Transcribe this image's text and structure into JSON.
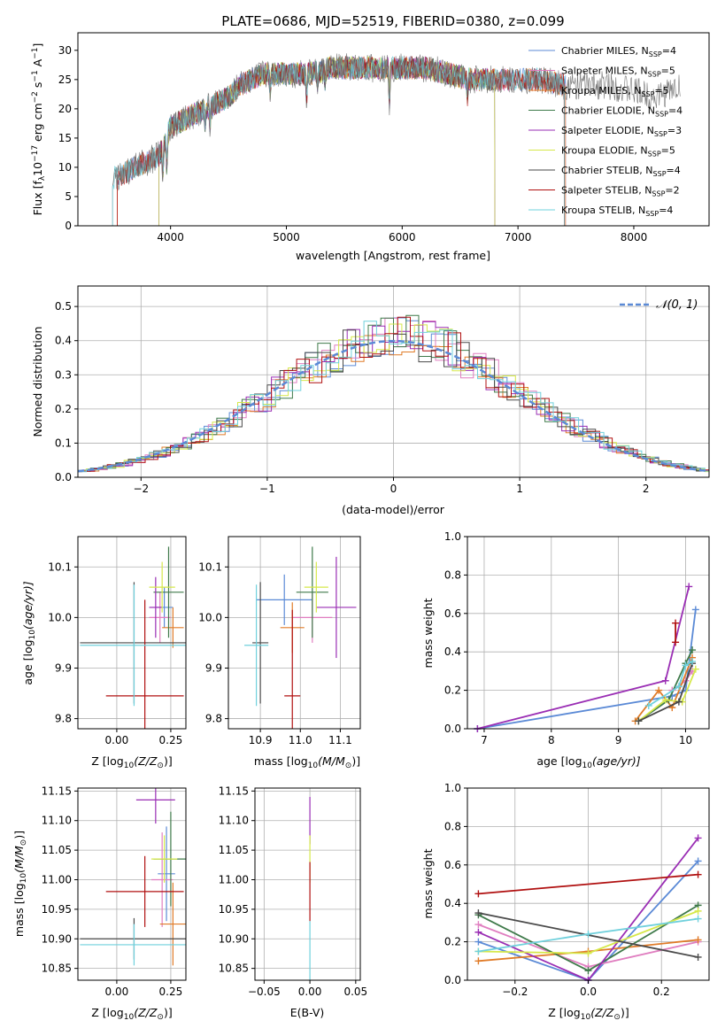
{
  "colors": {
    "Chabrier MILES": "#5b8ad6",
    "Salpeter MILES": "#e07ec0",
    "Kroupa MILES": "#e07b28",
    "Chabrier ELODIE": "#3f7a4a",
    "Salpeter ELODIE": "#9a2eb4",
    "Kroupa ELODIE": "#d6e84a",
    "Chabrier STELIB": "#4a4a4a",
    "Salpeter STELIB": "#b01010",
    "Kroupa STELIB": "#6fd0dc"
  },
  "model_order": [
    "Chabrier MILES",
    "Salpeter MILES",
    "Kroupa MILES",
    "Chabrier ELODIE",
    "Salpeter ELODIE",
    "Kroupa ELODIE",
    "Chabrier STELIB",
    "Salpeter STELIB",
    "Kroupa STELIB"
  ],
  "chart_data": [
    {
      "id": "spectrum",
      "type": "line",
      "title": "PLATE=0686, MJD=52519, FIBERID=0380, z=0.099",
      "xlabel": "wavelength [Angstrom, rest frame]",
      "ylabel_main": "Flux [f",
      "ylabel_sub": "λ",
      "ylabel_mid": "10",
      "ylabel_exp1": "−17",
      "ylabel_unit": " erg cm",
      "ylabel_exp2": "−2",
      "ylabel_s": " s",
      "ylabel_exp3": "−1",
      "ylabel_a": " A",
      "ylabel_exp4": "−1",
      "ylabel_end": "]",
      "xlim": [
        3200,
        8650
      ],
      "ylim": [
        0,
        33
      ],
      "xticks": [
        "4000",
        "5000",
        "6000",
        "7000",
        "8000"
      ],
      "yticks": [
        "0",
        "5",
        "10",
        "15",
        "20",
        "25",
        "30"
      ],
      "legend": [
        {
          "model": "Chabrier MILES",
          "n": "4"
        },
        {
          "model": "Salpeter MILES",
          "n": "5"
        },
        {
          "model": "Kroupa MILES",
          "n": "5"
        },
        {
          "model": "Chabrier ELODIE",
          "n": "4"
        },
        {
          "model": "Salpeter ELODIE",
          "n": "3"
        },
        {
          "model": "Kroupa ELODIE",
          "n": "5"
        },
        {
          "model": "Chabrier STELIB",
          "n": "4"
        },
        {
          "model": "Salpeter STELIB",
          "n": "2"
        },
        {
          "model": "Kroupa STELIB",
          "n": "4"
        }
      ],
      "legend_n_label": ", N",
      "legend_n_sub": "SSP",
      "continuum": {
        "x": [
          3500,
          3600,
          3700,
          3800,
          3900,
          3950,
          4000,
          4100,
          4200,
          4300,
          4400,
          4500,
          4600,
          4700,
          4800,
          5000,
          5200,
          5400,
          5600,
          5800,
          6000,
          6200,
          6400,
          6600,
          6800,
          7000,
          7200,
          7400,
          7600,
          7800,
          8000,
          8200,
          8400
        ],
        "y": [
          8,
          9,
          10,
          11,
          12,
          14,
          17,
          18,
          19,
          20,
          21,
          22,
          24,
          25,
          26,
          26,
          26,
          27,
          27,
          27,
          27,
          27,
          26,
          25,
          25,
          25,
          25,
          24,
          24,
          24,
          23,
          22,
          24
        ]
      },
      "model_ranges": {
        "STELIB": [
          3500,
          7400
        ],
        "ELODIE": [
          3900,
          6800
        ],
        "MILES": [
          3540,
          7410
        ],
        "Salpeter STELIB": [
          3540,
          7400
        ]
      }
    },
    {
      "id": "residuals",
      "type": "histogram",
      "xlabel": "(data-model)/error",
      "ylabel": "Normed distribution",
      "xlim": [
        -2.5,
        2.5
      ],
      "ylim": [
        0,
        0.56
      ],
      "xticks": [
        "−2",
        "−1",
        "0",
        "1",
        "2"
      ],
      "yticks": [
        "0.0",
        "0.1",
        "0.2",
        "0.3",
        "0.4",
        "0.5"
      ],
      "legend_label": "𝒩(0, 1)",
      "reference_color": "#5b8ad6"
    },
    {
      "id": "age_vs_Z",
      "type": "errorbar",
      "xlabel": "Z [log",
      "xlabel_sub": "10",
      "xlabel_rest": "(Z/Z",
      "xlabel_sun": "⊙",
      "xlabel_end": ")]",
      "ylabel": "age  [log",
      "ylabel_sub": "10",
      "ylabel_rest": "(age/yr)]",
      "xlim": [
        -0.18,
        0.32
      ],
      "ylim": [
        9.78,
        10.16
      ],
      "xticks": [
        "0.00",
        "0.25"
      ],
      "yticks": [
        "9.8",
        "9.9",
        "10.0",
        "10.1"
      ],
      "points": [
        {
          "model": "Chabrier MILES",
          "x": 0.22,
          "xerr": 0.04,
          "y": 10.02,
          "yerr": 0.04
        },
        {
          "model": "Salpeter MILES",
          "x": 0.2,
          "xerr": 0.05,
          "y": 10.0,
          "yerr": 0.05
        },
        {
          "model": "Kroupa MILES",
          "x": 0.26,
          "xerr": 0.05,
          "y": 9.98,
          "yerr": 0.04
        },
        {
          "model": "Chabrier ELODIE",
          "x": 0.24,
          "xerr": 0.07,
          "y": 10.05,
          "yerr": 0.09
        },
        {
          "model": "Salpeter ELODIE",
          "x": 0.18,
          "xerr": 0.03,
          "y": 10.02,
          "yerr": 0.06
        },
        {
          "model": "Kroupa ELODIE",
          "x": 0.21,
          "xerr": 0.06,
          "y": 10.06,
          "yerr": 0.05
        },
        {
          "model": "Chabrier STELIB",
          "x": 0.08,
          "xerr": 0.25,
          "y": 9.95,
          "yerr": 0.12
        },
        {
          "model": "Salpeter STELIB",
          "x": 0.13,
          "xerr": 0.18,
          "y": 9.845,
          "yerr": 0.19
        },
        {
          "model": "Kroupa STELIB",
          "x": 0.08,
          "xerr": 0.25,
          "y": 9.945,
          "yerr": 0.12
        }
      ]
    },
    {
      "id": "age_vs_mass",
      "type": "errorbar",
      "xlabel": "mass [log",
      "xlabel_sub": "10",
      "xlabel_rest": "(M/M",
      "xlabel_sun": "⊙",
      "xlabel_end": ")]",
      "xlim": [
        10.82,
        11.15
      ],
      "ylim": [
        9.78,
        10.16
      ],
      "xticks": [
        "10.9",
        "11.0",
        "11.1"
      ],
      "yticks": [
        "9.8",
        "9.9",
        "10.0",
        "10.1"
      ],
      "points": [
        {
          "model": "Chabrier MILES",
          "x": 10.96,
          "xerr": 0.07,
          "y": 10.035,
          "yerr": 0.05
        },
        {
          "model": "Salpeter MILES",
          "x": 11.03,
          "xerr": 0.05,
          "y": 10.0,
          "yerr": 0.05
        },
        {
          "model": "Kroupa MILES",
          "x": 10.98,
          "xerr": 0.03,
          "y": 9.98,
          "yerr": 0.05
        },
        {
          "model": "Chabrier ELODIE",
          "x": 11.03,
          "xerr": 0.04,
          "y": 10.05,
          "yerr": 0.09
        },
        {
          "model": "Salpeter ELODIE",
          "x": 11.09,
          "xerr": 0.05,
          "y": 10.02,
          "yerr": 0.1
        },
        {
          "model": "Kroupa ELODIE",
          "x": 11.04,
          "xerr": 0.03,
          "y": 10.06,
          "yerr": 0.05
        },
        {
          "model": "Chabrier STELIB",
          "x": 10.9,
          "xerr": 0.02,
          "y": 9.95,
          "yerr": 0.12
        },
        {
          "model": "Salpeter STELIB",
          "x": 10.98,
          "xerr": 0.02,
          "y": 9.845,
          "yerr": 0.17
        },
        {
          "model": "Kroupa STELIB",
          "x": 10.89,
          "xerr": 0.03,
          "y": 9.945,
          "yerr": 0.12
        }
      ]
    },
    {
      "id": "weight_vs_age",
      "type": "line",
      "xlabel": "age  [log",
      "xlabel_sub": "10",
      "xlabel_rest": "(age/yr)]",
      "ylabel": "mass weight",
      "xlim": [
        6.75,
        10.35
      ],
      "ylim": [
        0,
        1.0
      ],
      "xticks": [
        "7",
        "8",
        "9",
        "10"
      ],
      "yticks": [
        "0.0",
        "0.2",
        "0.4",
        "0.6",
        "0.8",
        "1.0"
      ],
      "series": [
        {
          "model": "Chabrier MILES",
          "x": [
            6.9,
            9.8,
            10.0,
            10.15
          ],
          "y": [
            0.0,
            0.17,
            0.2,
            0.62
          ]
        },
        {
          "model": "Salpeter MILES",
          "x": [
            9.8,
            10.0,
            10.1
          ],
          "y": [
            0.2,
            0.25,
            0.3
          ]
        },
        {
          "model": "Kroupa MILES",
          "x": [
            9.25,
            9.6,
            9.8,
            10.1
          ],
          "y": [
            0.04,
            0.2,
            0.11,
            0.37
          ]
        },
        {
          "model": "Chabrier ELODIE",
          "x": [
            9.3,
            9.75,
            10.0,
            10.1
          ],
          "y": [
            0.04,
            0.15,
            0.34,
            0.41
          ]
        },
        {
          "model": "Salpeter ELODIE",
          "x": [
            6.9,
            9.7,
            10.05
          ],
          "y": [
            0.0,
            0.25,
            0.74
          ]
        },
        {
          "model": "Kroupa ELODIE",
          "x": [
            9.3,
            9.7,
            9.95,
            10.15
          ],
          "y": [
            0.04,
            0.15,
            0.14,
            0.31
          ]
        },
        {
          "model": "Chabrier STELIB",
          "x": [
            9.3,
            9.9,
            10.1
          ],
          "y": [
            0.04,
            0.14,
            0.34
          ]
        },
        {
          "model": "Salpeter STELIB",
          "x": [
            9.85,
            9.85
          ],
          "y": [
            0.45,
            0.55
          ]
        },
        {
          "model": "Kroupa STELIB",
          "x": [
            9.45,
            9.9,
            10.0,
            10.1
          ],
          "y": [
            0.12,
            0.22,
            0.33,
            0.35
          ]
        }
      ]
    },
    {
      "id": "mass_vs_Z",
      "type": "errorbar",
      "ylabel": "mass [log",
      "ylabel_sub": "10",
      "ylabel_rest": "(M/M",
      "ylabel_sun": "⊙",
      "ylabel_end": ")]",
      "xlim": [
        -0.18,
        0.32
      ],
      "ylim": [
        10.83,
        11.155
      ],
      "xticks": [
        "0.00",
        "0.25"
      ],
      "yticks": [
        "10.85",
        "10.90",
        "10.95",
        "11.00",
        "11.05",
        "11.10",
        "11.15"
      ],
      "points": [
        {
          "model": "Chabrier MILES",
          "x": 0.23,
          "xerr": 0.04,
          "y": 11.01,
          "yerr": 0.08
        },
        {
          "model": "Salpeter MILES",
          "x": 0.21,
          "xerr": 0.05,
          "y": 11.0,
          "yerr": 0.08
        },
        {
          "model": "Kroupa MILES",
          "x": 0.26,
          "xerr": 0.06,
          "y": 10.925,
          "yerr": 0.07
        },
        {
          "model": "Chabrier ELODIE",
          "x": 0.25,
          "xerr": 0.08,
          "y": 11.035,
          "yerr": 0.08
        },
        {
          "model": "Salpeter ELODIE",
          "x": 0.18,
          "xerr": 0.09,
          "y": 11.135,
          "yerr": 0.04
        },
        {
          "model": "Kroupa ELODIE",
          "x": 0.22,
          "xerr": 0.06,
          "y": 11.035,
          "yerr": 0.04
        },
        {
          "model": "Chabrier STELIB",
          "x": 0.08,
          "xerr": 0.25,
          "y": 10.9,
          "yerr": 0.035
        },
        {
          "model": "Salpeter STELIB",
          "x": 0.13,
          "xerr": 0.18,
          "y": 10.98,
          "yerr": 0.06
        },
        {
          "model": "Kroupa STELIB",
          "x": 0.08,
          "xerr": 0.25,
          "y": 10.89,
          "yerr": 0.035
        }
      ]
    },
    {
      "id": "mass_vs_EBV",
      "type": "errorbar",
      "xlabel": "E(B-V)",
      "xlim": [
        -0.06,
        0.055
      ],
      "ylim": [
        10.83,
        11.155
      ],
      "xticks": [
        "−0.05",
        "0.00",
        "0.05"
      ],
      "yticks": [
        "10.85",
        "10.90",
        "10.95",
        "11.00",
        "11.05",
        "11.10",
        "11.15"
      ],
      "points": [
        {
          "model": "Salpeter ELODIE",
          "x": 0,
          "xerr": 0,
          "y": 11.1,
          "yerr": 0.04
        },
        {
          "model": "Kroupa ELODIE",
          "x": 0,
          "xerr": 0,
          "y": 11.035,
          "yerr": 0.04
        },
        {
          "model": "Salpeter STELIB",
          "x": 0,
          "xerr": 0,
          "y": 10.98,
          "yerr": 0.05
        },
        {
          "model": "Kroupa STELIB",
          "x": 0,
          "xerr": 0,
          "y": 10.88,
          "yerr": 0.05
        }
      ]
    },
    {
      "id": "weight_vs_Z",
      "type": "line",
      "xlabel": "Z [log",
      "xlabel_sub": "10",
      "xlabel_rest": "(Z/Z",
      "xlabel_sun": "⊙",
      "xlabel_end": ")]",
      "ylabel": "mass weight",
      "xlim": [
        -0.33,
        0.33
      ],
      "ylim": [
        0,
        1.0
      ],
      "xticks": [
        "−0.2",
        "0.0",
        "0.2"
      ],
      "yticks": [
        "0.0",
        "0.2",
        "0.4",
        "0.6",
        "0.8",
        "1.0"
      ],
      "series": [
        {
          "model": "Chabrier MILES",
          "x": [
            -0.3,
            0.0,
            0.3
          ],
          "y": [
            0.2,
            0.0,
            0.62
          ]
        },
        {
          "model": "Salpeter MILES",
          "x": [
            -0.3,
            0.0,
            0.3
          ],
          "y": [
            0.29,
            0.07,
            0.2
          ]
        },
        {
          "model": "Kroupa MILES",
          "x": [
            -0.3,
            0.0,
            0.3
          ],
          "y": [
            0.1,
            0.15,
            0.21
          ]
        },
        {
          "model": "Chabrier ELODIE",
          "x": [
            -0.3,
            0.0,
            0.3
          ],
          "y": [
            0.34,
            0.05,
            0.39
          ]
        },
        {
          "model": "Salpeter ELODIE",
          "x": [
            -0.3,
            0.0,
            0.3
          ],
          "y": [
            0.25,
            0.0,
            0.74
          ]
        },
        {
          "model": "Kroupa ELODIE",
          "x": [
            -0.3,
            0.0,
            0.3
          ],
          "y": [
            0.15,
            0.14,
            0.36
          ]
        },
        {
          "model": "Chabrier STELIB",
          "x": [
            -0.3,
            0.3
          ],
          "y": [
            0.35,
            0.12
          ]
        },
        {
          "model": "Salpeter STELIB",
          "x": [
            -0.3,
            0.3
          ],
          "y": [
            0.45,
            0.55
          ]
        },
        {
          "model": "Kroupa STELIB",
          "x": [
            -0.3,
            0.0,
            0.3
          ],
          "y": [
            0.15,
            0.24,
            0.32
          ]
        }
      ]
    }
  ]
}
